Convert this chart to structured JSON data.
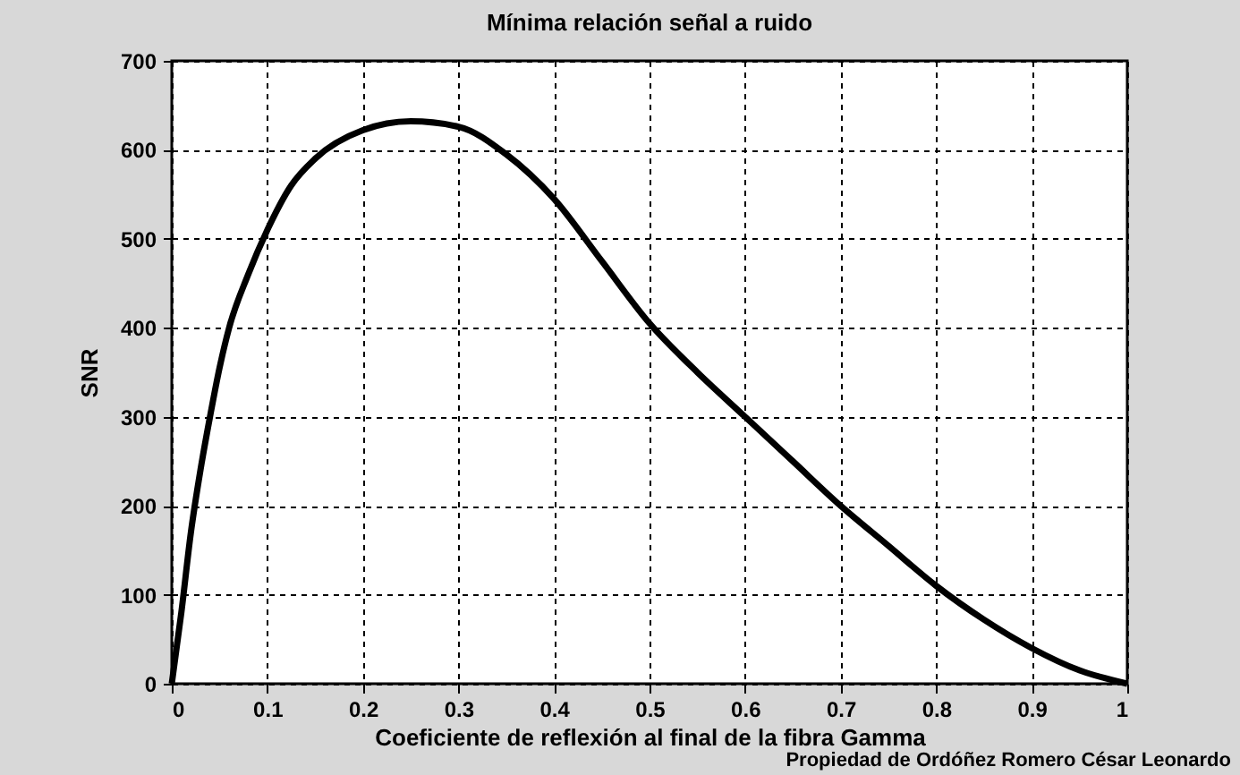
{
  "chart_data": {
    "type": "line",
    "title": "Mínima relación señal a ruido",
    "xlabel": "Coeficiente de reflexión al final de la fibra Gamma",
    "ylabel": "SNR",
    "annotations": [
      "Propiedad de Ordóñez Romero César Leonardo"
    ],
    "x": [
      0,
      0.01,
      0.02,
      0.03,
      0.04,
      0.05,
      0.06,
      0.08,
      0.1,
      0.125,
      0.15,
      0.2,
      0.25,
      0.3,
      0.35,
      0.4,
      0.45,
      0.5,
      0.55,
      0.6,
      0.65,
      0.7,
      0.75,
      0.8,
      0.85,
      0.9,
      0.95,
      1
    ],
    "series": [
      {
        "color": "#000000",
        "values": [
          0,
          80,
          170,
          240,
          300,
          355,
          400,
          460,
          510,
          560,
          590,
          622,
          632,
          626,
          595,
          545,
          475,
          405,
          350,
          300,
          250,
          200,
          155,
          110,
          72,
          40,
          15,
          0
        ]
      }
    ],
    "xlim": [
      0,
      1
    ],
    "xticks": [
      0,
      0.1,
      0.2,
      0.3,
      0.4,
      0.5,
      0.6,
      0.7,
      0.8,
      0.9,
      1
    ],
    "ylim": [
      0,
      700
    ],
    "yticks": [
      0,
      100,
      200,
      300,
      400,
      500,
      600,
      700
    ],
    "grid": true,
    "line_style": "solid",
    "marker": "none"
  }
}
